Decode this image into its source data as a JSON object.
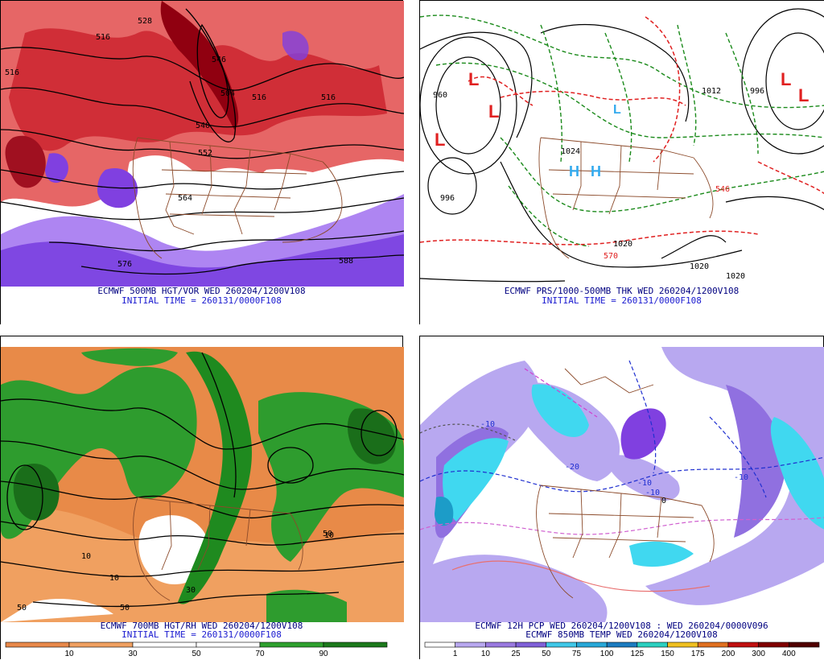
{
  "panels": {
    "tl": {
      "title": "ECMWF 500MB HGT/VOR WED 260204/1200V108",
      "init": "INITIAL TIME = 260131/0000F108",
      "contour_labels": [
        "528",
        "516",
        "516",
        "504",
        "540",
        "552",
        "564",
        "576",
        "588",
        "516",
        "516",
        "546"
      ],
      "colors": {
        "vort": "#d8202a",
        "vort_light": "#f0a0a0",
        "neg": "#8040e0",
        "neg_light": "#b090f0"
      }
    },
    "tr": {
      "title": "ECMWF PRS/1000-500MB THK WED 260204/1200V108",
      "init": "INITIAL TIME = 260131/0000F108",
      "pressure_labels": [
        "960",
        "1012",
        "996",
        "1020",
        "1020",
        "1020",
        "996",
        "1024"
      ],
      "thick_labels": [
        "546",
        "570"
      ],
      "centers": [
        "L",
        "L",
        "L",
        "L",
        "H",
        "H",
        "L",
        "L"
      ],
      "colors": {
        "thk_cold": "#1a8a1a",
        "thk_warm": "#e02020",
        "isobar": "#000000",
        "high": "#33aaee"
      }
    },
    "bl": {
      "title": "ECMWF 700MB HGT/RH WED 260204/1200V108",
      "init": "INITIAL TIME = 260131/0000F108",
      "contour_labels": [
        "10",
        "10",
        "10",
        "50",
        "50",
        "50",
        "30"
      ],
      "colorbar": {
        "ticks": [
          "10",
          "30",
          "50",
          "70",
          "90"
        ],
        "colors": [
          "#e8894a",
          "#f0a060",
          "#ffffff",
          "#ffffff",
          "#2ea02e",
          "#1c7a1c"
        ]
      },
      "colors": {
        "dry": "#e88a48",
        "dry_light": "#f4b27a",
        "moist": "#2e9c2e",
        "moist_dark": "#1a6e1a"
      }
    },
    "br": {
      "title": "ECMWF 12H PCP WED 260204/1200V108 : WED 260204/0000V096",
      "subtitle": "ECMWF 850MB TEMP WED 260204/1200V108",
      "temp_labels": [
        "-10",
        "-10",
        "-10",
        "-10",
        "-20",
        "0"
      ],
      "colorbar": {
        "ticks": [
          "1",
          "10",
          "25",
          "50",
          "75",
          "100",
          "125",
          "150",
          "175",
          "200",
          "300",
          "400"
        ],
        "colors": [
          "#ffffff",
          "#b8a8f0",
          "#9a7ae0",
          "#8060d8",
          "#40c8e8",
          "#28a8d8",
          "#1c7cc0",
          "#2cd0c0",
          "#f0c020",
          "#e07020",
          "#c01010",
          "#800000",
          "#500000"
        ]
      },
      "colors": {
        "light": "#b8a8f0",
        "mid": "#9070e0",
        "cyan": "#40d8f0",
        "teal": "#1c9cc8"
      }
    }
  },
  "map_colors": {
    "borders": "#8b4a2a",
    "heights": "#000000"
  }
}
